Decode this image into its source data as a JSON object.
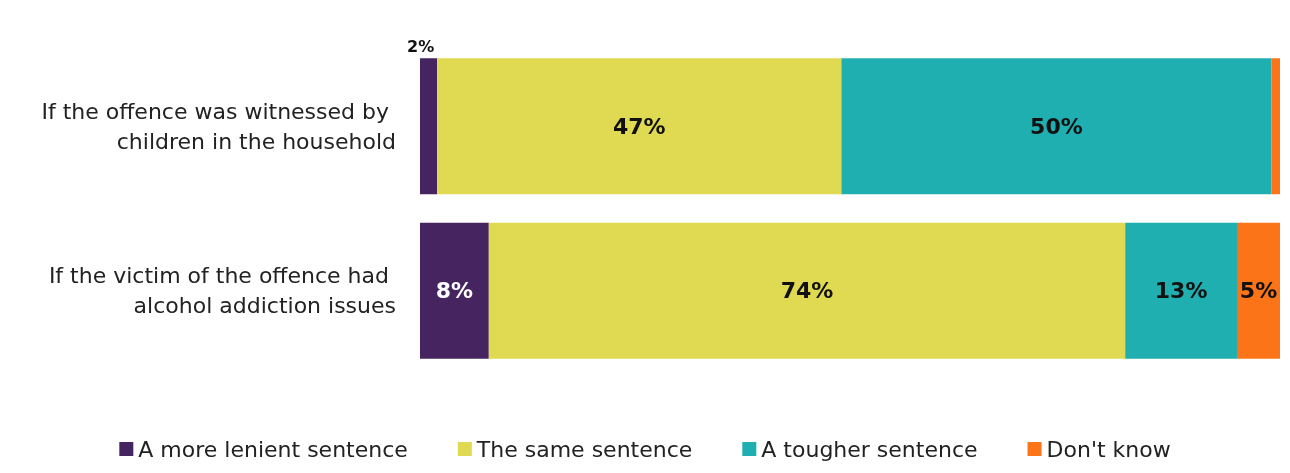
{
  "chart_data": {
    "type": "bar",
    "orientation": "horizontal",
    "stacked": true,
    "legend": "bottom",
    "categories": [
      "If the offence was witnessed by children in the household",
      "If the victim of the offence had alcohol addiction issues"
    ],
    "series": [
      {
        "name": "A more lenient sentence",
        "color": "#45245f",
        "values": [
          2,
          8
        ],
        "value_labels": [
          "2%",
          "8%"
        ]
      },
      {
        "name": "The same sentence",
        "color": "#e0da52",
        "values": [
          47,
          74
        ],
        "value_labels": [
          "47%",
          "74%"
        ]
      },
      {
        "name": "A tougher sentence",
        "color": "#20afb0",
        "values": [
          50,
          13
        ],
        "value_labels": [
          "50%",
          "13%"
        ]
      },
      {
        "name": "Don't know",
        "color": "#fc7418",
        "values": [
          1,
          5
        ],
        "value_labels": [
          null,
          "5%"
        ]
      }
    ]
  }
}
